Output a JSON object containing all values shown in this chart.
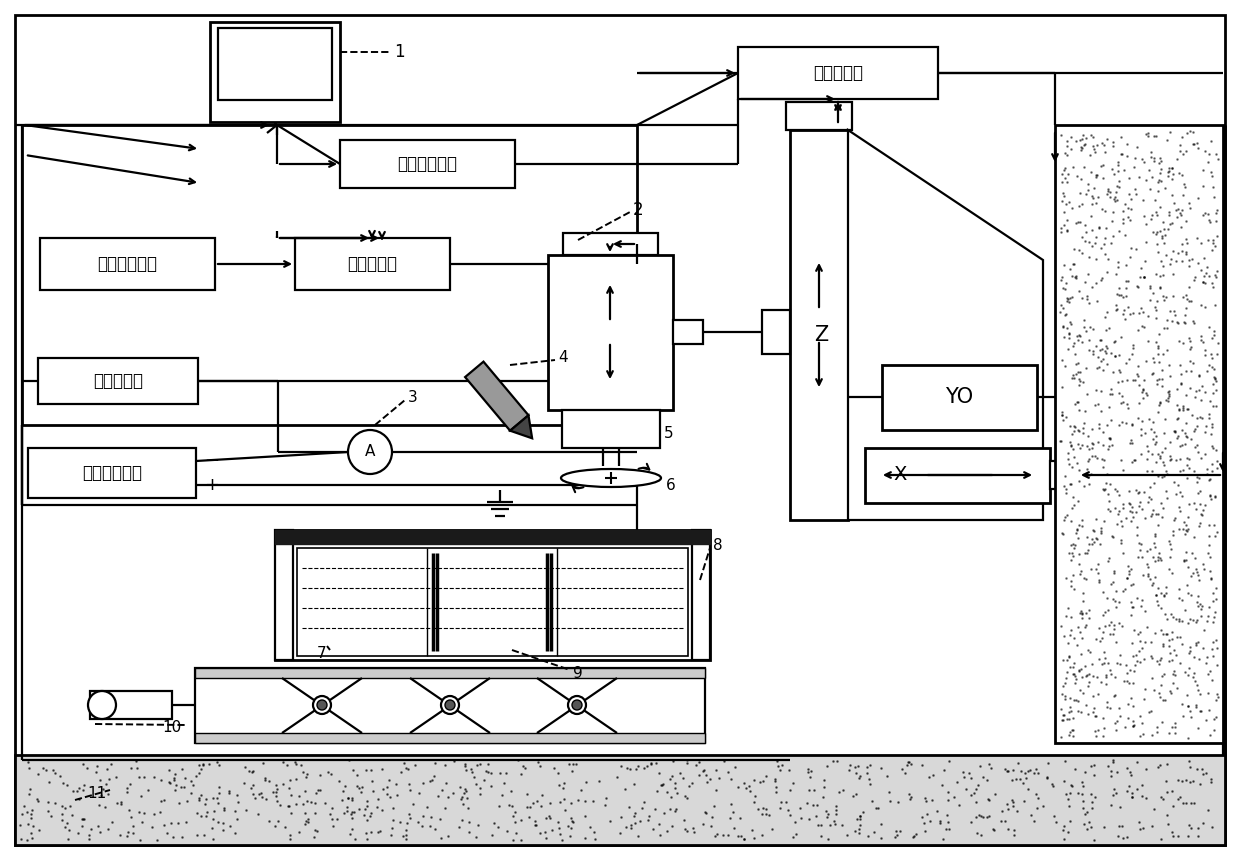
{
  "box_labels": {
    "motion_control": "运动控制卡",
    "programmable_freq": "可编程变频器",
    "ultrasonic_gen": "超声波发生器",
    "freq_amplitude": "变频变幅器",
    "data_acquisition": "数据采集卡",
    "high_freq_power": "高频脉冲电源"
  },
  "axis_Z": "Z",
  "axis_Y": "YO",
  "axis_X": "X",
  "ammeter": "A",
  "numbers": [
    "1",
    "2",
    "3",
    "4",
    "5",
    "6",
    "7",
    "8",
    "9",
    "10",
    "11"
  ]
}
